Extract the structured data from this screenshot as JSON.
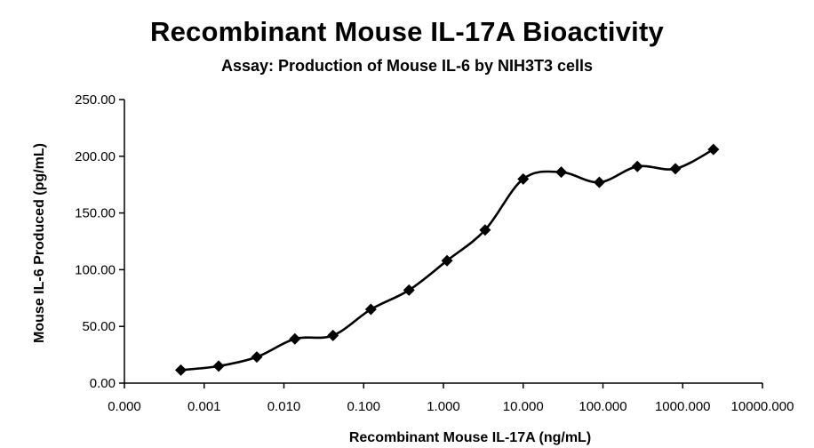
{
  "chart_data": {
    "type": "line",
    "title": "Recombinant Mouse IL-17A Bioactivity",
    "subtitle": "Assay: Production of Mouse IL-6 by NIH3T3 cells",
    "xlabel": "Recombinant Mouse IL-17A (ng/mL)",
    "ylabel": "Mouse IL-6 Produced (pg/mL)",
    "x_scale": "log",
    "x_tick_labels": [
      "0.000",
      "0.001",
      "0.010",
      "0.100",
      "1.000",
      "10.000",
      "100.000",
      "1000.000",
      "10000.000"
    ],
    "y_tick_labels": [
      "0.00",
      "50.00",
      "100.00",
      "150.00",
      "200.00",
      "250.00"
    ],
    "ylim": [
      0,
      250
    ],
    "grid": false,
    "series": [
      {
        "color": "#000000",
        "marker": "diamond",
        "x": [
          0.00051,
          0.00152,
          0.00457,
          0.0137,
          0.0412,
          0.123,
          0.37,
          1.11,
          3.33,
          10,
          30,
          90,
          270,
          810,
          2430
        ],
        "y": [
          11.5,
          15,
          23,
          39,
          42,
          65,
          82,
          108,
          135,
          180,
          186,
          177,
          191,
          189,
          206
        ]
      }
    ]
  }
}
